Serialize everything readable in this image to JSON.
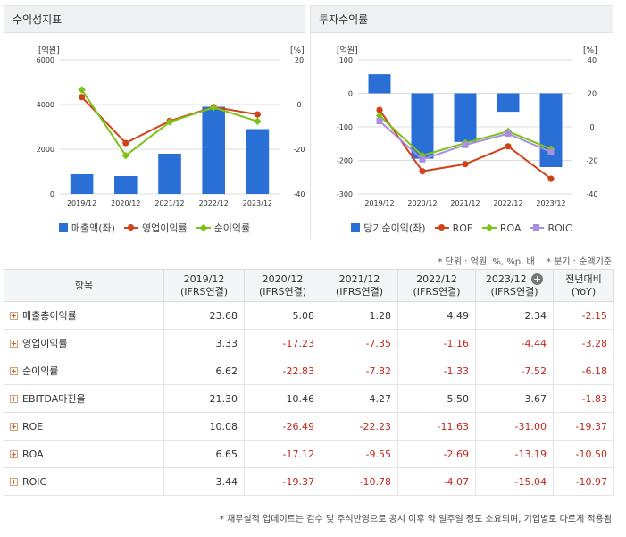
{
  "left_panel": {
    "title": "수익성지표",
    "legend": [
      {
        "label": "매출액(좌)",
        "kind": "bar",
        "color": "#2a6fd6"
      },
      {
        "label": "영업이익률",
        "kind": "dot",
        "color": "#d0431a"
      },
      {
        "label": "순이익률",
        "kind": "diamond",
        "color": "#7cc218"
      }
    ]
  },
  "right_panel": {
    "title": "투자수익률",
    "legend": [
      {
        "label": "당기순이익(좌)",
        "kind": "bar",
        "color": "#2a6fd6"
      },
      {
        "label": "ROE",
        "kind": "dot",
        "color": "#d0431a"
      },
      {
        "label": "ROA",
        "kind": "diamond",
        "color": "#7cc218"
      },
      {
        "label": "ROIC",
        "kind": "square",
        "color": "#a88ee0"
      }
    ]
  },
  "chart_data": [
    {
      "type": "bar+line",
      "title": "수익성지표",
      "categories": [
        "2019/12",
        "2020/12",
        "2021/12",
        "2022/12",
        "2023/12"
      ],
      "left_axis": {
        "unit": "[억원]",
        "ylim": [
          0,
          6000
        ],
        "ticks": [
          "6000",
          "4000",
          "2000",
          "0"
        ]
      },
      "right_axis": {
        "unit": "[%]",
        "ylim": [
          -40,
          20
        ],
        "ticks": [
          "20",
          "0",
          "-20",
          "-40"
        ]
      },
      "bars": {
        "name": "매출액(좌)",
        "values": [
          880,
          800,
          1800,
          3900,
          2900
        ],
        "color": "#2a6fd6"
      },
      "lines": [
        {
          "name": "영업이익률",
          "values": [
            3.33,
            -17.23,
            -7.35,
            -1.16,
            -4.44
          ],
          "color": "#d0431a",
          "marker": "dot"
        },
        {
          "name": "순이익률",
          "values": [
            6.62,
            -22.83,
            -7.82,
            -1.33,
            -7.52
          ],
          "color": "#7cc218",
          "marker": "diamond"
        }
      ],
      "grid": true
    },
    {
      "type": "bar+line",
      "title": "투자수익률",
      "categories": [
        "2019/12",
        "2020/12",
        "2021/12",
        "2022/12",
        "2023/12"
      ],
      "left_axis": {
        "unit": "[억원]",
        "ylim": [
          -300,
          100
        ],
        "ticks": [
          "100",
          "0",
          "-100",
          "-200",
          "-300"
        ]
      },
      "right_axis": {
        "unit": "[%]",
        "ylim": [
          -40,
          40
        ],
        "ticks": [
          "40",
          "20",
          "0",
          "-20",
          "-40"
        ]
      },
      "bars": {
        "name": "당기순이익(좌)",
        "values": [
          57,
          -195,
          -145,
          -55,
          -220
        ],
        "color": "#2a6fd6"
      },
      "lines": [
        {
          "name": "ROE",
          "values": [
            10.08,
            -26.49,
            -22.23,
            -11.63,
            -31.0
          ],
          "color": "#d0431a",
          "marker": "dot"
        },
        {
          "name": "ROA",
          "values": [
            6.65,
            -17.12,
            -9.55,
            -2.69,
            -13.19
          ],
          "color": "#7cc218",
          "marker": "diamond"
        },
        {
          "name": "ROIC",
          "values": [
            3.44,
            -19.37,
            -10.78,
            -4.07,
            -15.04
          ],
          "color": "#a88ee0",
          "marker": "square"
        }
      ],
      "grid": true
    }
  ],
  "notes": {
    "unit": "* 단위 : 억원, %, %p, 배",
    "quarter": "* 분기 : 순액기준"
  },
  "table": {
    "headers": [
      {
        "l1": "항목",
        "l2": ""
      },
      {
        "l1": "2019/12",
        "l2": "(IFRS연결)"
      },
      {
        "l1": "2020/12",
        "l2": "(IFRS연결)"
      },
      {
        "l1": "2021/12",
        "l2": "(IFRS연결)"
      },
      {
        "l1": "2022/12",
        "l2": "(IFRS연결)"
      },
      {
        "l1": "2023/12",
        "l2": "(IFRS연결)"
      },
      {
        "l1": "전년대비",
        "l2": "(YoY)"
      }
    ],
    "rows": [
      {
        "label": "매출총이익률",
        "values": [
          "23.68",
          "5.08",
          "1.28",
          "4.49",
          "2.34",
          "-2.15"
        ]
      },
      {
        "label": "영업이익률",
        "values": [
          "3.33",
          "-17.23",
          "-7.35",
          "-1.16",
          "-4.44",
          "-3.28"
        ]
      },
      {
        "label": "순이익률",
        "values": [
          "6.62",
          "-22.83",
          "-7.82",
          "-1.33",
          "-7.52",
          "-6.18"
        ]
      },
      {
        "label": "EBITDA마진율",
        "values": [
          "21.30",
          "10.46",
          "4.27",
          "5.50",
          "3.67",
          "-1.83"
        ]
      },
      {
        "label": "ROE",
        "values": [
          "10.08",
          "-26.49",
          "-22.23",
          "-11.63",
          "-31.00",
          "-19.37"
        ]
      },
      {
        "label": "ROA",
        "values": [
          "6.65",
          "-17.12",
          "-9.55",
          "-2.69",
          "-13.19",
          "-10.50"
        ]
      },
      {
        "label": "ROIC",
        "values": [
          "3.44",
          "-19.37",
          "-10.78",
          "-4.07",
          "-15.04",
          "-10.97"
        ]
      }
    ]
  },
  "footnote": "* 재무실적 업데이트는 검수 및 주석반영으로 공시 이후 약 일주일 정도 소요되며, 기업별로 다르게 적용됨"
}
